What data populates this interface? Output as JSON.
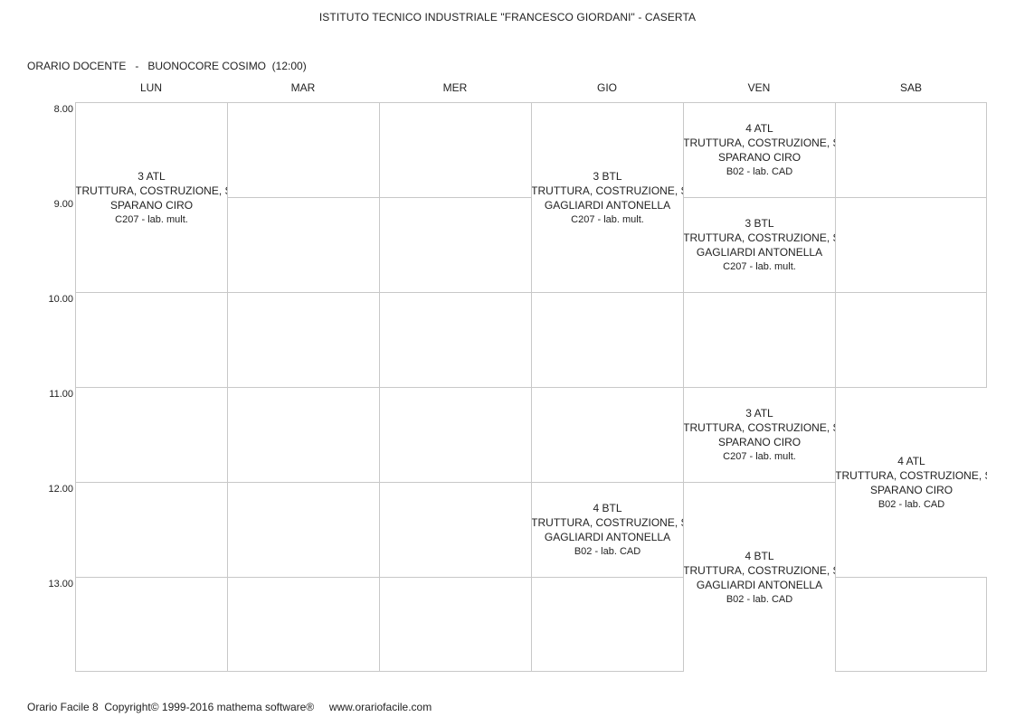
{
  "header": {
    "school_title": "ISTITUTO TECNICO INDUSTRIALE \"FRANCESCO GIORDANI\" - CASERTA",
    "teacher_line": "ORARIO DOCENTE   -   BUONOCORE COSIMO  (12:00)"
  },
  "days": [
    "LUN",
    "MAR",
    "MER",
    "GIO",
    "VEN",
    "SAB"
  ],
  "hours": [
    "8.00",
    "9.00",
    "10.00",
    "11.00",
    "12.00",
    "13.00"
  ],
  "lessons": [
    {
      "day": 0,
      "start": 0,
      "span": 2,
      "class": "3 ATL",
      "subject": "STRUTTURA, COSTRUZIONE, SI",
      "teacher": "SPARANO CIRO",
      "room": "C207 - lab. mult."
    },
    {
      "day": 3,
      "start": 0,
      "span": 2,
      "class": "3 BTL",
      "subject": "STRUTTURA, COSTRUZIONE, SI",
      "teacher": "GAGLIARDI ANTONELLA",
      "room": "C207 - lab. mult."
    },
    {
      "day": 4,
      "start": 0,
      "span": 1,
      "class": "4 ATL",
      "subject": "STRUTTURA, COSTRUZIONE, SI",
      "teacher": "SPARANO CIRO",
      "room": "B02 - lab.  CAD"
    },
    {
      "day": 4,
      "start": 1,
      "span": 1,
      "class": "3 BTL",
      "subject": "STRUTTURA, COSTRUZIONE, SI",
      "teacher": "GAGLIARDI ANTONELLA",
      "room": "C207 - lab. mult."
    },
    {
      "day": 4,
      "start": 3,
      "span": 1,
      "class": "3 ATL",
      "subject": "STRUTTURA, COSTRUZIONE, SI",
      "teacher": "SPARANO CIRO",
      "room": "C207 - lab. mult."
    },
    {
      "day": 5,
      "start": 3,
      "span": 2,
      "class": "4 ATL",
      "subject": "STRUTTURA, COSTRUZIONE, SI",
      "teacher": "SPARANO CIRO",
      "room": "B02 - lab.  CAD"
    },
    {
      "day": 3,
      "start": 4,
      "span": 1,
      "class": "4 BTL",
      "subject": "STRUTTURA, COSTRUZIONE, SI",
      "teacher": "GAGLIARDI ANTONELLA",
      "room": "B02 - lab.  CAD"
    },
    {
      "day": 4,
      "start": 4,
      "span": 2,
      "class": "4 BTL",
      "subject": "STRUTTURA, COSTRUZIONE, SI",
      "teacher": "GAGLIARDI ANTONELLA",
      "room": "B02 - lab.  CAD"
    }
  ],
  "footer": {
    "text": "Orario Facile 8  Copyright© 1999-2016 mathema software®     www.orariofacile.com"
  }
}
